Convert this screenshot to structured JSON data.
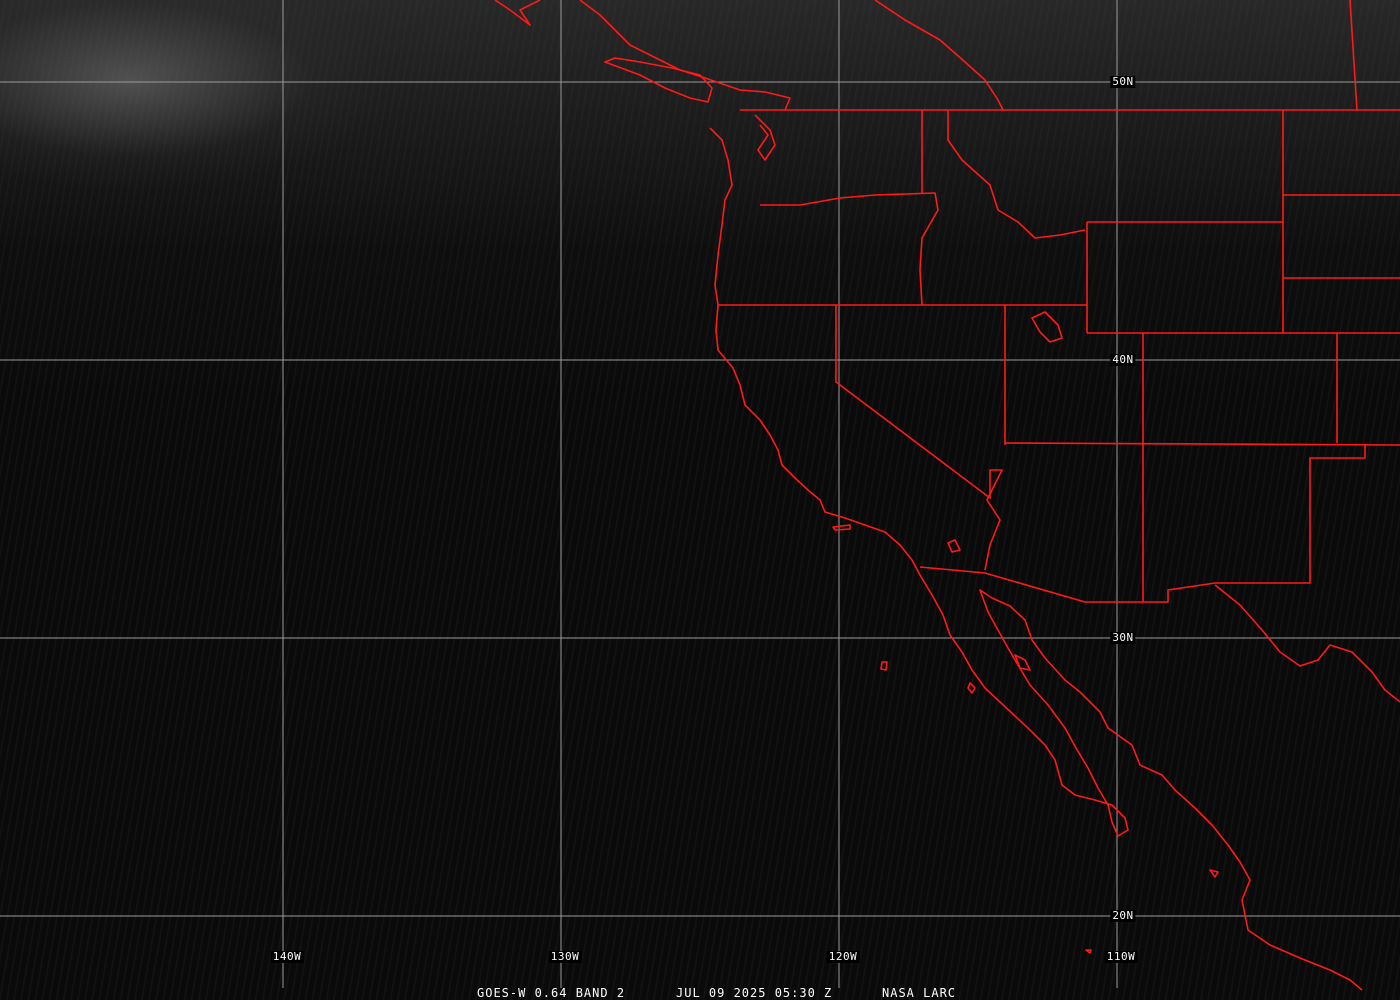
{
  "image": {
    "caption": {
      "satellite": "GOES-W 0.64 BAND 2",
      "datetime": "JUL 09 2025 05:30 Z",
      "source": "NASA LARC"
    },
    "longitude_labels": [
      "140W",
      "130W",
      "120W",
      "110W"
    ],
    "latitude_labels": [
      "50N",
      "40N",
      "30N",
      "20N"
    ],
    "colors": {
      "boundaries": "#ff1a1a",
      "gridlines": "#9a9a9a",
      "text": "#ffffff",
      "background": "#0b0b0b"
    }
  }
}
